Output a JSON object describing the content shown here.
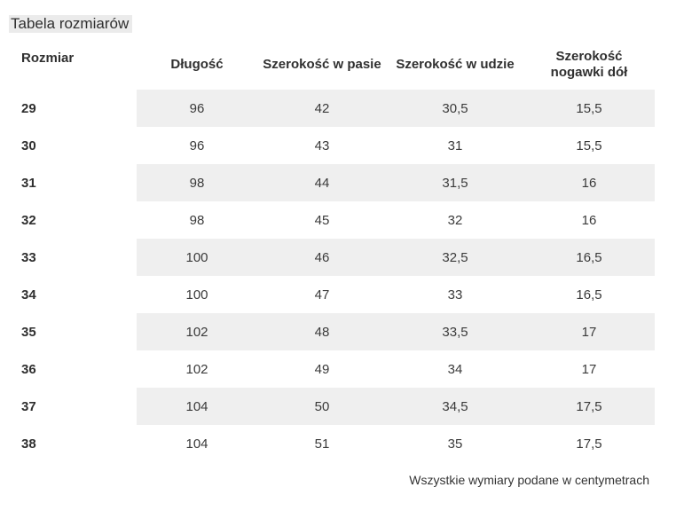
{
  "title": "Tabela rozmiarów",
  "table": {
    "headers": [
      "Rozmiar",
      "Długość",
      "Szerokość w pasie",
      "Szerokość w udzie",
      "Szerokość nogawki dół"
    ],
    "rows": [
      [
        "29",
        "96",
        "42",
        "30,5",
        "15,5"
      ],
      [
        "30",
        "96",
        "43",
        "31",
        "15,5"
      ],
      [
        "31",
        "98",
        "44",
        "31,5",
        "16"
      ],
      [
        "32",
        "98",
        "45",
        "32",
        "16"
      ],
      [
        "33",
        "100",
        "46",
        "32,5",
        "16,5"
      ],
      [
        "34",
        "100",
        "47",
        "33",
        "16,5"
      ],
      [
        "35",
        "102",
        "48",
        "33,5",
        "17"
      ],
      [
        "36",
        "102",
        "49",
        "34",
        "17"
      ],
      [
        "37",
        "104",
        "50",
        "34,5",
        "17,5"
      ],
      [
        "38",
        "104",
        "51",
        "35",
        "17,5"
      ]
    ]
  },
  "footer_note": "Wszystkie wymiary podane w centymetrach",
  "colors": {
    "stripe": "#efefef",
    "title_highlight": "#ebebeb",
    "text": "#333333"
  }
}
